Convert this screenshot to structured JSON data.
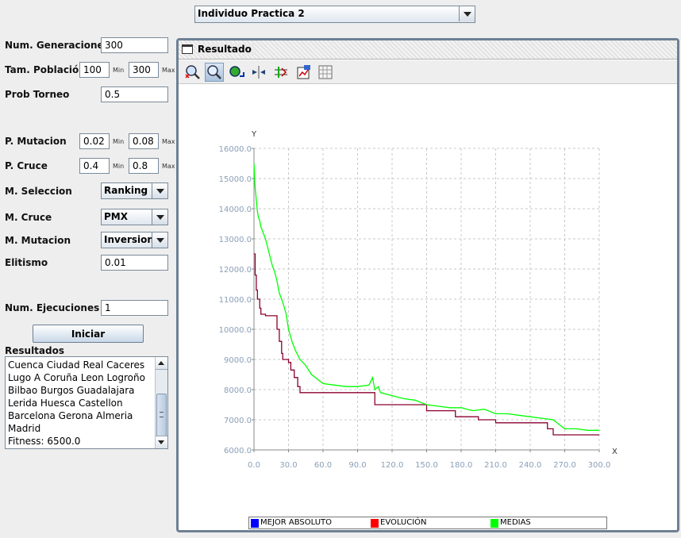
{
  "selector": {
    "value": "Individuo Practica 2"
  },
  "params": {
    "num_generaciones": {
      "label": "Num. Generaciones",
      "value": "300"
    },
    "tam_poblacion": {
      "label": "Tam. Población",
      "value": "100",
      "min_label": "Min",
      "max_value": "300",
      "max_label": "Max"
    },
    "prob_torneo": {
      "label": "Prob Torneo",
      "value": "0.5"
    },
    "p_mutacion": {
      "label": "P. Mutacion",
      "value": "0.02",
      "min_label": "Min",
      "max_value": "0.08",
      "max_label": "Max"
    },
    "p_cruce": {
      "label": "P. Cruce",
      "value": "0.4",
      "min_label": "Min",
      "max_value": "0.8",
      "max_label": "Max"
    },
    "m_seleccion": {
      "label": "M. Seleccion",
      "value": "Ranking"
    },
    "m_cruce": {
      "label": "M. Cruce",
      "value": "PMX"
    },
    "m_mutacion": {
      "label": "M. Mutacion",
      "value": "Inversion"
    },
    "elitismo": {
      "label": "Elitismo",
      "value": "0.01"
    },
    "num_ejecuciones": {
      "label": "Num. Ejecuciones",
      "value": "1"
    }
  },
  "run_button": {
    "label": "Iniciar"
  },
  "results": {
    "label": "Resultados",
    "lines": [
      "Cuenca  Ciudad Real  Caceres",
      "Lugo  A Coruña  Leon  Logroño",
      "Bilbao  Burgos  Guadalajara",
      "Lerida  Huesca  Castellon",
      "Barcelona  Gerona  Almeria",
      "Madrid",
      "Fitness: 6500.0"
    ]
  },
  "panel": {
    "title": "Resultado"
  },
  "toolbar_icons": [
    "zoom-reset-icon",
    "zoom-in-icon",
    "zoom-region-icon",
    "center-icon",
    "grid-icon",
    "export-icon",
    "table-icon"
  ],
  "colors": {
    "mejor_absoluto": "#0000ff",
    "evolucion": "#ff0000",
    "medias": "#00ff00",
    "evolucion_line": "#8b0030"
  },
  "chart_data": {
    "type": "line",
    "xlabel": "X",
    "ylabel": "Y",
    "xlim": [
      0,
      300
    ],
    "ylim": [
      6000,
      16000
    ],
    "xticks": [
      "0.0",
      "30.0",
      "60.0",
      "90.0",
      "120.0",
      "150.0",
      "180.0",
      "210.0",
      "240.0",
      "270.0",
      "300.0"
    ],
    "yticks": [
      "6000.0",
      "7000.0",
      "8000.0",
      "9000.0",
      "10000.0",
      "11000.0",
      "12000.0",
      "13000.0",
      "14000.0",
      "15000.0",
      "16000.0"
    ],
    "grid": true,
    "legend": [
      "MEJOR ABSOLUTO",
      "EVOLUCIÓN",
      "MEDIAS"
    ],
    "series": [
      {
        "name": "EVOLUCIÓN",
        "x": [
          0,
          1,
          2,
          3,
          5,
          6,
          8,
          10,
          13,
          14,
          18,
          20,
          22,
          24,
          25,
          28,
          30,
          32,
          35,
          38,
          40,
          100,
          105,
          130,
          150,
          165,
          175,
          195,
          210,
          230,
          255,
          260,
          300
        ],
        "y": [
          12500,
          11800,
          11300,
          11000,
          10700,
          10500,
          10500,
          10450,
          10450,
          10450,
          10450,
          10000,
          9600,
          9200,
          9000,
          9000,
          8900,
          8650,
          8400,
          8100,
          7900,
          7900,
          7500,
          7500,
          7300,
          7300,
          7100,
          7000,
          6900,
          6900,
          6700,
          6500,
          6500
        ]
      },
      {
        "name": "MEDIAS",
        "x": [
          0,
          1,
          2,
          3,
          4,
          5,
          6,
          8,
          10,
          12,
          14,
          16,
          18,
          20,
          22,
          25,
          28,
          30,
          33,
          36,
          40,
          45,
          50,
          60,
          70,
          80,
          90,
          100,
          103,
          105,
          108,
          110,
          120,
          130,
          140,
          150,
          160,
          170,
          180,
          190,
          200,
          210,
          220,
          230,
          240,
          250,
          260,
          265,
          270,
          280,
          290,
          300
        ],
        "y": [
          15500,
          14700,
          14300,
          13900,
          13700,
          13600,
          13400,
          13200,
          13000,
          12700,
          12400,
          12100,
          11900,
          11600,
          11200,
          10900,
          10500,
          10000,
          9600,
          9300,
          9000,
          8800,
          8500,
          8200,
          8150,
          8100,
          8100,
          8150,
          8400,
          8000,
          8100,
          7900,
          7800,
          7700,
          7650,
          7500,
          7450,
          7400,
          7400,
          7300,
          7350,
          7200,
          7200,
          7150,
          7100,
          7050,
          7000,
          6850,
          6700,
          6700,
          6650,
          6650
        ]
      }
    ]
  }
}
